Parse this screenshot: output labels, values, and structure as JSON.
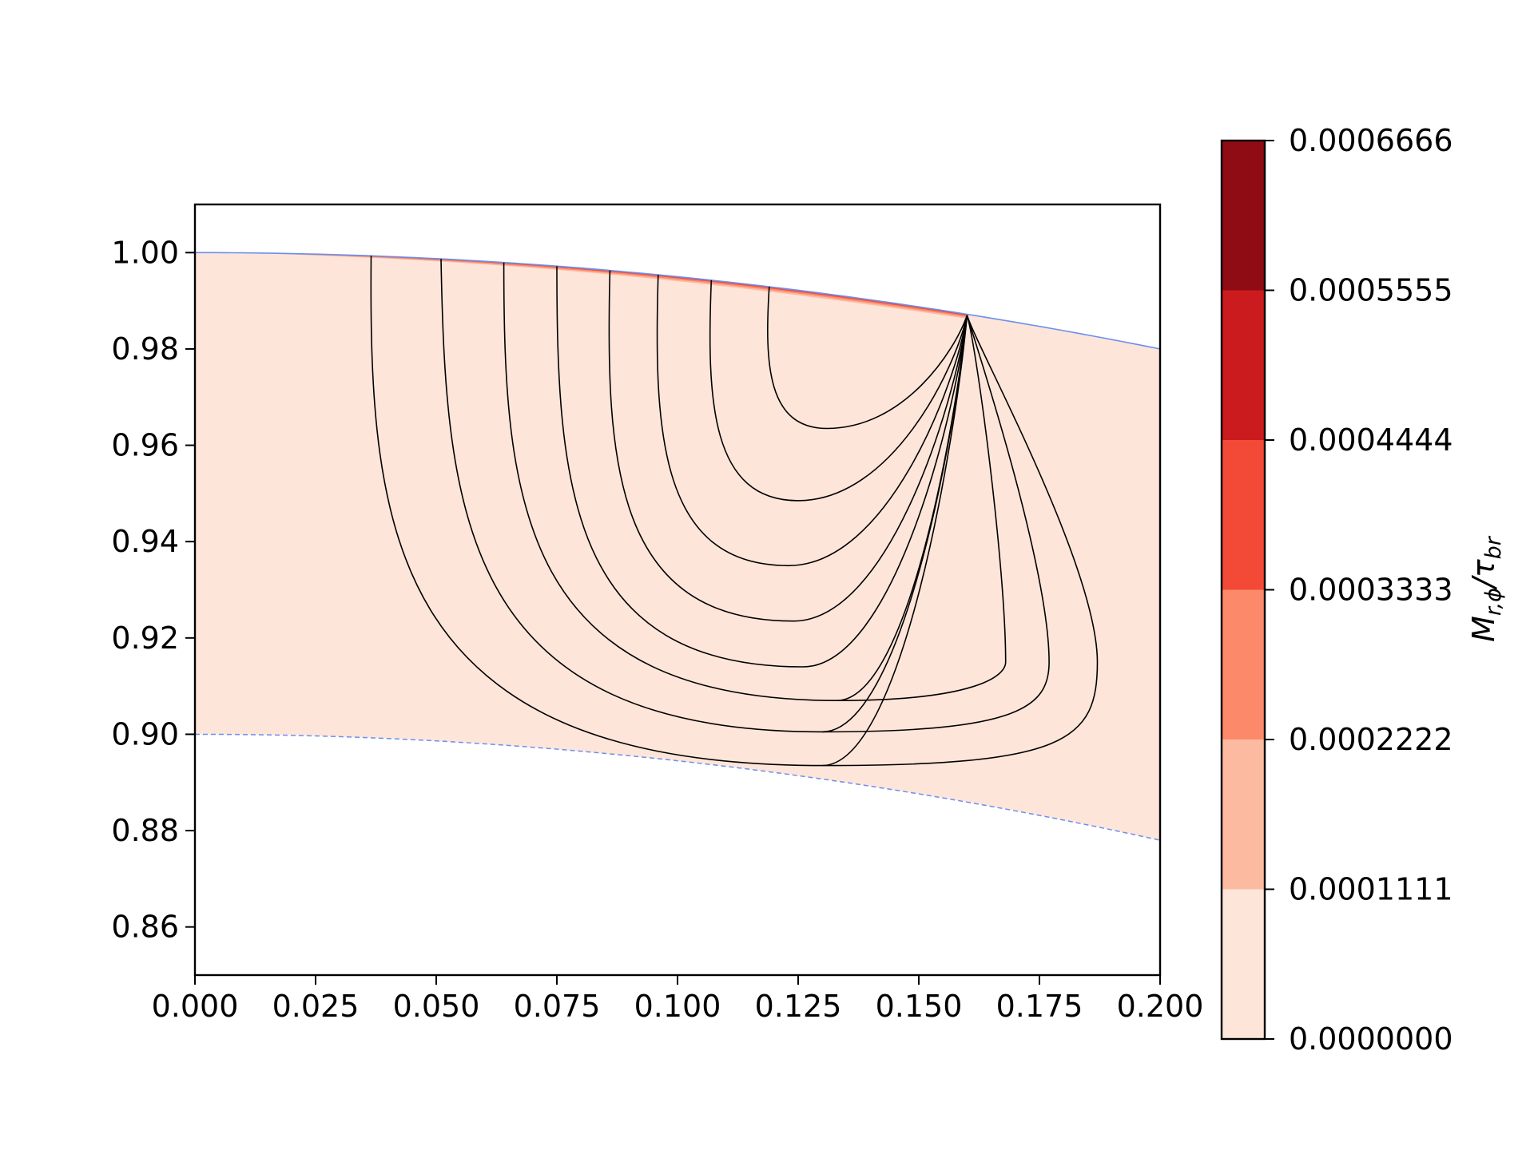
{
  "chart_data": {
    "type": "contourf",
    "title": "",
    "xlabel": "",
    "ylabel": "",
    "xlim": [
      0.0,
      0.2
    ],
    "ylim": [
      0.85,
      1.01
    ],
    "x_ticks": [
      0.0,
      0.025,
      0.05,
      0.075,
      0.1,
      0.125,
      0.15,
      0.175,
      0.2
    ],
    "x_tick_labels": [
      "0.000",
      "0.025",
      "0.050",
      "0.075",
      "0.100",
      "0.125",
      "0.150",
      "0.175",
      "0.200"
    ],
    "y_ticks": [
      0.86,
      0.88,
      0.9,
      0.92,
      0.94,
      0.96,
      0.98,
      1.0
    ],
    "y_tick_labels": [
      "0.86",
      "0.88",
      "0.90",
      "0.92",
      "0.94",
      "0.96",
      "0.98",
      "1.00"
    ],
    "grid": false,
    "colorbar": {
      "label_main": "M",
      "label_main_sub": "r,ϕ",
      "label_slash": "/τ",
      "label_denom_sub": "br",
      "levels": [
        0.0,
        0.0001111,
        0.0002222,
        0.0003333,
        0.0004444,
        0.0005555,
        0.0006666
      ],
      "level_labels": [
        "0.0000000",
        "0.0001111",
        "0.0002222",
        "0.0003333",
        "0.0004444",
        "0.0005555",
        "0.0006666"
      ],
      "colors": [
        "#fee5d9",
        "#fcbba1",
        "#fc8a6a",
        "#f24a36",
        "#cb1b1e",
        "#8f0c14"
      ]
    },
    "surface_curve": {
      "color": "#6b8fef",
      "style": "solid",
      "x": [
        0.0,
        0.025,
        0.05,
        0.075,
        0.1,
        0.125,
        0.15,
        0.175,
        0.2
      ],
      "y": [
        1.0,
        0.9995,
        0.998,
        0.9955,
        0.992,
        0.9875,
        0.982,
        0.9755,
        0.98
      ]
    },
    "lower_boundary": {
      "color": "#6b8fef",
      "style": "dashed",
      "x": [
        0.0,
        0.025,
        0.05,
        0.075,
        0.1,
        0.125,
        0.15,
        0.175,
        0.2
      ],
      "y": [
        0.9,
        0.8995,
        0.898,
        0.8955,
        0.892,
        0.8875,
        0.882,
        0.8755,
        0.8775
      ]
    },
    "surface_band": {
      "color": "#f24a36",
      "x_start": 0.015,
      "x_end": 0.16,
      "max_thickness": 0.0013
    },
    "focus_point": {
      "x": 0.16,
      "y": 0.987
    },
    "contour_lines": [
      {
        "start_x": 0.0365,
        "x_min": 0.036,
        "bottom_x": 0.13,
        "bottom_y": 0.8935
      },
      {
        "start_x": 0.051,
        "x_min": 0.052,
        "bottom_x": 0.13,
        "bottom_y": 0.9005
      },
      {
        "start_x": 0.064,
        "x_min": 0.064,
        "bottom_x": 0.133,
        "bottom_y": 0.907
      },
      {
        "start_x": 0.075,
        "x_min": 0.075,
        "bottom_x": 0.126,
        "bottom_y": 0.914
      },
      {
        "start_x": 0.086,
        "x_min": 0.085,
        "bottom_x": 0.124,
        "bottom_y": 0.9235
      },
      {
        "start_x": 0.096,
        "x_min": 0.095,
        "bottom_x": 0.123,
        "bottom_y": 0.935
      },
      {
        "start_x": 0.107,
        "x_min": 0.106,
        "bottom_x": 0.125,
        "bottom_y": 0.9485
      },
      {
        "start_x": 0.119,
        "x_min": 0.118,
        "bottom_x": 0.131,
        "bottom_y": 0.9635
      }
    ]
  }
}
